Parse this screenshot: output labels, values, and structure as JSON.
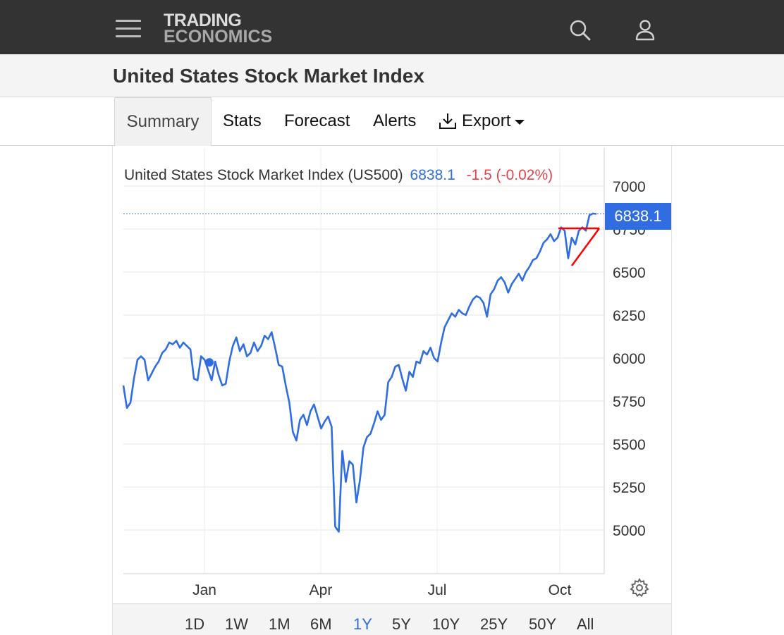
{
  "header": {
    "logo_line1": "TRADING",
    "logo_line2": "ECONOMICS",
    "icons": [
      "menu-icon",
      "search-icon",
      "user-icon"
    ]
  },
  "page": {
    "title": "United States Stock Market Index"
  },
  "tabs": [
    {
      "label": "Summary",
      "active": true
    },
    {
      "label": "Stats",
      "active": false
    },
    {
      "label": "Forecast",
      "active": false
    },
    {
      "label": "Alerts",
      "active": false
    },
    {
      "label": "Export",
      "active": false
    }
  ],
  "chart_header": {
    "name": "United States Stock Market Index (US500)",
    "price": "6838.1",
    "change": "-1.5 (-0.02%)"
  },
  "price_tag": "6838.1",
  "colors": {
    "line": "#2f6de1",
    "negative": "#e0454b",
    "annotation": "#ff0000",
    "topbar": "#333333"
  },
  "ranges": [
    {
      "label": "1D",
      "active": false
    },
    {
      "label": "1W",
      "active": false
    },
    {
      "label": "1M",
      "active": false
    },
    {
      "label": "6M",
      "active": false
    },
    {
      "label": "1Y",
      "active": true
    },
    {
      "label": "5Y",
      "active": false
    },
    {
      "label": "10Y",
      "active": false
    },
    {
      "label": "25Y",
      "active": false
    },
    {
      "label": "50Y",
      "active": false
    },
    {
      "label": "All",
      "active": false
    }
  ],
  "chart_data": {
    "type": "line",
    "title": "",
    "xlabel": "",
    "ylabel": "",
    "x_ticks": [
      "Jan",
      "Apr",
      "Jul",
      "Oct"
    ],
    "y_ticks": [
      5000,
      5250,
      5500,
      5750,
      6000,
      6250,
      6500,
      6750,
      7000
    ],
    "ylim": [
      4750,
      7100
    ],
    "grid": true,
    "series": [
      {
        "values": [
          5840,
          5710,
          5740,
          5880,
          5990,
          6010,
          5990,
          5870,
          5910,
          5950,
          5980,
          6030,
          6050,
          6090,
          6080,
          6100,
          6060,
          6090,
          6070,
          6050,
          5880,
          5870,
          6010,
          5990,
          5930,
          5870,
          5980,
          5900,
          5840,
          5850,
          5980,
          6070,
          6120,
          6040,
          6080,
          6010,
          6030,
          6090,
          6040,
          6070,
          6130,
          6110,
          6150,
          6060,
          5960,
          5950,
          5840,
          5740,
          5570,
          5520,
          5640,
          5670,
          5610,
          5690,
          5730,
          5660,
          5590,
          5630,
          5660,
          5600,
          5020,
          4990,
          5460,
          5280,
          5400,
          5380,
          5160,
          5290,
          5480,
          5540,
          5560,
          5620,
          5690,
          5640,
          5670,
          5860,
          5890,
          5950,
          5960,
          5880,
          5810,
          5920,
          5890,
          5980,
          5970,
          6040,
          6020,
          6060,
          6000,
          5980,
          6090,
          6180,
          6220,
          6260,
          6240,
          6280,
          6260,
          6250,
          6300,
          6340,
          6360,
          6350,
          6320,
          6240,
          6370,
          6400,
          6450,
          6470,
          6440,
          6380,
          6430,
          6460,
          6490,
          6450,
          6500,
          6530,
          6570,
          6580,
          6620,
          6670,
          6690,
          6720,
          6680,
          6700,
          6760,
          6740,
          6580,
          6700,
          6660,
          6740,
          6760,
          6740,
          6830,
          6840,
          6838
        ]
      }
    ],
    "annotations": {
      "marker": {
        "label": "Jan",
        "value": 5975
      },
      "horizontal_line": 6838.1
    }
  }
}
